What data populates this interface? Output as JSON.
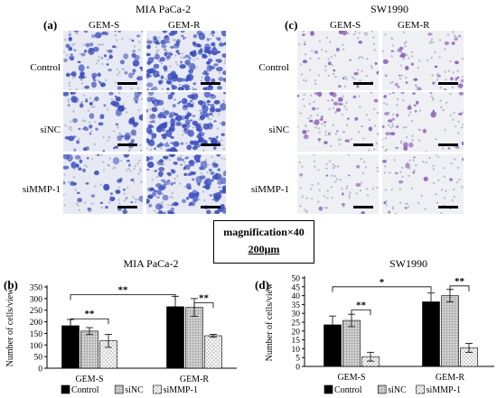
{
  "top": {
    "left_title": "MIA PaCa-2",
    "right_title": "SW1990",
    "label_a": "(a)",
    "label_c": "(c)",
    "col_s": "GEM-S",
    "col_r": "GEM-R",
    "rows": [
      "Control",
      "siNC",
      "siMMP-1"
    ],
    "mia_color": "#3a4fc0",
    "sw_color": "#8a5ab8"
  },
  "magnification": {
    "line1": "magnification×40",
    "line2": "200μm"
  },
  "chart_data": [
    {
      "type": "bar",
      "panel_label": "(b)",
      "title": "MIA PaCa-2",
      "ylabel": "Number of cells/view",
      "ylim": [
        0,
        350
      ],
      "yticks": [
        0,
        50,
        100,
        150,
        200,
        250,
        300,
        350
      ],
      "categories": [
        "GEM-S",
        "GEM-R"
      ],
      "series": [
        {
          "name": "Control",
          "values": [
            183,
            265
          ],
          "errors": [
            27,
            45
          ],
          "fill": "black"
        },
        {
          "name": "siNC",
          "values": [
            160,
            262
          ],
          "errors": [
            15,
            38
          ],
          "fill": "grid"
        },
        {
          "name": "siMMP-1",
          "values": [
            118,
            140
          ],
          "errors": [
            28,
            6
          ],
          "fill": "dots"
        }
      ],
      "significance": [
        {
          "label": "**",
          "from": [
            0,
            0
          ],
          "to": [
            1,
            0
          ],
          "y": 317
        },
        {
          "label": "**",
          "from": [
            0,
            0
          ],
          "to": [
            0,
            2
          ],
          "y": 213
        },
        {
          "label": "**",
          "from": [
            1,
            1
          ],
          "to": [
            1,
            2
          ],
          "y": 282
        }
      ],
      "legend": "bottom"
    },
    {
      "type": "bar",
      "panel_label": "(d)",
      "title": "SW1990",
      "ylabel": "Number of cells/view",
      "ylim": [
        0,
        50
      ],
      "yticks": [
        0,
        5,
        10,
        15,
        20,
        25,
        30,
        35,
        40,
        45,
        50
      ],
      "categories": [
        "GEM-S",
        "GEM-R"
      ],
      "series": [
        {
          "name": "Control",
          "values": [
            23.5,
            36.5
          ],
          "errors": [
            5,
            5
          ],
          "fill": "black"
        },
        {
          "name": "siNC",
          "values": [
            26,
            40
          ],
          "errors": [
            3.5,
            3.5
          ],
          "fill": "grid"
        },
        {
          "name": "siMMP-1",
          "values": [
            5.5,
            10.5
          ],
          "errors": [
            2.5,
            2.5
          ],
          "fill": "dots"
        }
      ],
      "significance": [
        {
          "label": "*",
          "from": [
            0,
            0
          ],
          "to": [
            1,
            0
          ],
          "y": 45
        },
        {
          "label": "**",
          "from": [
            0,
            1
          ],
          "to": [
            0,
            2
          ],
          "y": 32
        },
        {
          "label": "**",
          "from": [
            1,
            1
          ],
          "to": [
            1,
            2
          ],
          "y": 45.5
        }
      ],
      "legend": "bottom"
    }
  ]
}
